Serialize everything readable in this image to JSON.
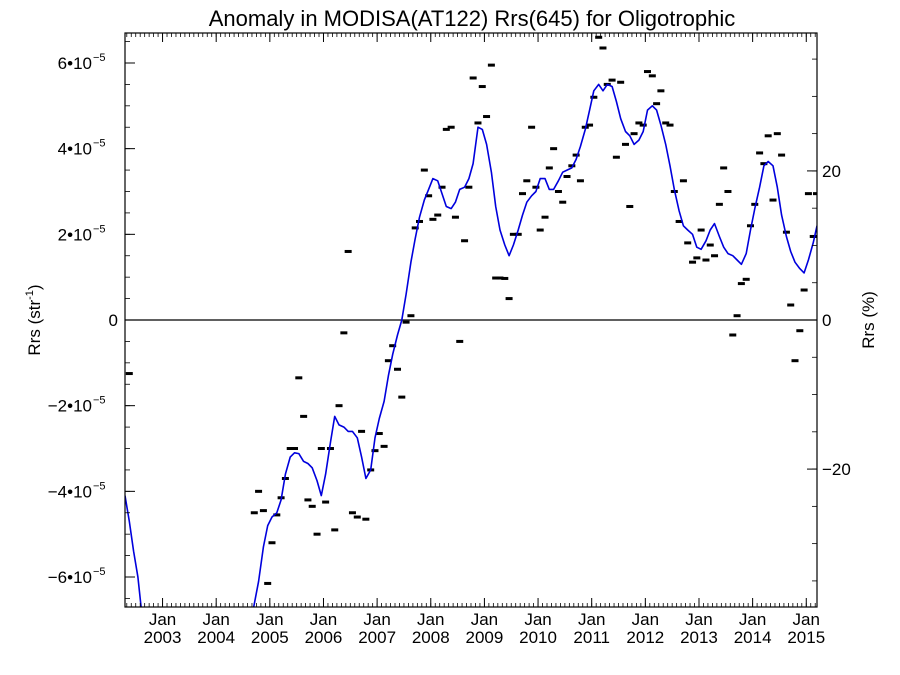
{
  "chart_data": {
    "type": "line",
    "title": "Anomaly in MODISA(AT122) Rrs(645) for Oligotrophic",
    "ylabel": "Rrs (str",
    "ylabel_sup": "-1",
    "ylabel_close": ")",
    "y2label": "Rrs (%)",
    "xlim": [
      2002.3,
      2015.2
    ],
    "ylim": [
      -6.7e-05,
      6.7e-05
    ],
    "y2lim": [
      -38.5,
      38.5
    ],
    "x_ticks": [
      {
        "pos": 2003.0,
        "line1": "Jan",
        "line2": "2003"
      },
      {
        "pos": 2004.0,
        "line1": "Jan",
        "line2": "2004"
      },
      {
        "pos": 2005.0,
        "line1": "Jan",
        "line2": "2005"
      },
      {
        "pos": 2006.0,
        "line1": "Jan",
        "line2": "2006"
      },
      {
        "pos": 2007.0,
        "line1": "Jan",
        "line2": "2007"
      },
      {
        "pos": 2008.0,
        "line1": "Jan",
        "line2": "2008"
      },
      {
        "pos": 2009.0,
        "line1": "Jan",
        "line2": "2009"
      },
      {
        "pos": 2010.0,
        "line1": "Jan",
        "line2": "2010"
      },
      {
        "pos": 2011.0,
        "line1": "Jan",
        "line2": "2011"
      },
      {
        "pos": 2012.0,
        "line1": "Jan",
        "line2": "2012"
      },
      {
        "pos": 2013.0,
        "line1": "Jan",
        "line2": "2013"
      },
      {
        "pos": 2014.0,
        "line1": "Jan",
        "line2": "2014"
      },
      {
        "pos": 2015.0,
        "line1": "Jan",
        "line2": "2015"
      }
    ],
    "y_ticks": [
      {
        "value": 6e-05,
        "mant": "6•10",
        "exp": "−5"
      },
      {
        "value": 4e-05,
        "mant": "4•10",
        "exp": "−5"
      },
      {
        "value": 2e-05,
        "mant": "2•10",
        "exp": "−5"
      },
      {
        "value": 0,
        "mant": "0",
        "exp": ""
      },
      {
        "value": -2e-05,
        "mant": "−2•10",
        "exp": "−5"
      },
      {
        "value": -4e-05,
        "mant": "−4•10",
        "exp": "−5"
      },
      {
        "value": -6e-05,
        "mant": "−6•10",
        "exp": "−5"
      }
    ],
    "y2_ticks": [
      {
        "value": 20,
        "label": "20"
      },
      {
        "value": 0,
        "label": "0"
      },
      {
        "value": -20,
        "label": "−20"
      }
    ],
    "zero_line": true,
    "line_color": "#0000dd",
    "marker_color": "#000000",
    "series": [
      {
        "kind": "monthly_markers",
        "points": [
          [
            2002.38,
            -1.25e-05
          ],
          [
            2004.71,
            -4.5e-05
          ],
          [
            2004.79,
            -4e-05
          ],
          [
            2004.88,
            -4.45e-05
          ],
          [
            2004.96,
            -6.15e-05
          ],
          [
            2005.04,
            -5.2e-05
          ],
          [
            2005.13,
            -4.55e-05
          ],
          [
            2005.21,
            -4.15e-05
          ],
          [
            2005.29,
            -3.7e-05
          ],
          [
            2005.38,
            -3e-05
          ],
          [
            2005.46,
            -3e-05
          ],
          [
            2005.54,
            -1.35e-05
          ],
          [
            2005.63,
            -2.25e-05
          ],
          [
            2005.71,
            -4.2e-05
          ],
          [
            2005.79,
            -4.35e-05
          ],
          [
            2005.88,
            -5e-05
          ],
          [
            2005.96,
            -3e-05
          ],
          [
            2006.04,
            -4.25e-05
          ],
          [
            2006.13,
            -3e-05
          ],
          [
            2006.21,
            -4.9e-05
          ],
          [
            2006.29,
            -2e-05
          ],
          [
            2006.38,
            -3e-06
          ],
          [
            2006.46,
            1.6e-05
          ],
          [
            2006.54,
            -4.5e-05
          ],
          [
            2006.63,
            -4.6e-05
          ],
          [
            2006.71,
            -2.6e-05
          ],
          [
            2006.79,
            -4.65e-05
          ],
          [
            2006.88,
            -3.5e-05
          ],
          [
            2006.96,
            -3.05e-05
          ],
          [
            2007.04,
            -2.65e-05
          ],
          [
            2007.13,
            -2.95e-05
          ],
          [
            2007.21,
            -9.5e-06
          ],
          [
            2007.29,
            -6e-06
          ],
          [
            2007.38,
            -1.15e-05
          ],
          [
            2007.46,
            -1.8e-05
          ],
          [
            2007.54,
            -5e-07
          ],
          [
            2007.63,
            1e-06
          ],
          [
            2007.71,
            2.15e-05
          ],
          [
            2007.79,
            2.3e-05
          ],
          [
            2007.88,
            3.5e-05
          ],
          [
            2007.96,
            2.9e-05
          ],
          [
            2008.04,
            2.35e-05
          ],
          [
            2008.13,
            2.45e-05
          ],
          [
            2008.21,
            3.1e-05
          ],
          [
            2008.29,
            4.45e-05
          ],
          [
            2008.38,
            4.5e-05
          ],
          [
            2008.46,
            2.4e-05
          ],
          [
            2008.54,
            -5e-06
          ],
          [
            2008.63,
            1.85e-05
          ],
          [
            2008.71,
            3.1e-05
          ],
          [
            2008.79,
            5.65e-05
          ],
          [
            2008.88,
            4.6e-05
          ],
          [
            2008.96,
            5.45e-05
          ],
          [
            2009.04,
            4.75e-05
          ],
          [
            2009.13,
            5.95e-05
          ],
          [
            2009.21,
            9.8e-06
          ],
          [
            2009.29,
            9.8e-06
          ],
          [
            2009.38,
            9.7e-06
          ],
          [
            2009.46,
            5e-06
          ],
          [
            2009.54,
            2e-05
          ],
          [
            2009.63,
            2e-05
          ],
          [
            2009.71,
            2.95e-05
          ],
          [
            2009.79,
            3.25e-05
          ],
          [
            2009.88,
            4.5e-05
          ],
          [
            2009.96,
            3.1e-05
          ],
          [
            2010.04,
            2.1e-05
          ],
          [
            2010.13,
            2.4e-05
          ],
          [
            2010.21,
            3.55e-05
          ],
          [
            2010.29,
            4e-05
          ],
          [
            2010.38,
            3e-05
          ],
          [
            2010.46,
            2.75e-05
          ],
          [
            2010.54,
            3.35e-05
          ],
          [
            2010.63,
            3.6e-05
          ],
          [
            2010.71,
            3.85e-05
          ],
          [
            2010.79,
            3.25e-05
          ],
          [
            2010.88,
            4.5e-05
          ],
          [
            2010.96,
            4.55e-05
          ],
          [
            2011.04,
            5.2e-05
          ],
          [
            2011.13,
            6.6e-05
          ],
          [
            2011.21,
            6.35e-05
          ],
          [
            2011.29,
            5.5e-05
          ],
          [
            2011.38,
            5.6e-05
          ],
          [
            2011.46,
            3.8e-05
          ],
          [
            2011.54,
            5.55e-05
          ],
          [
            2011.63,
            4.1e-05
          ],
          [
            2011.71,
            2.65e-05
          ],
          [
            2011.79,
            4.35e-05
          ],
          [
            2011.88,
            4.6e-05
          ],
          [
            2011.96,
            4.55e-05
          ],
          [
            2012.04,
            5.8e-05
          ],
          [
            2012.13,
            5.7e-05
          ],
          [
            2012.21,
            5.05e-05
          ],
          [
            2012.29,
            5.35e-05
          ],
          [
            2012.38,
            4.6e-05
          ],
          [
            2012.46,
            4.55e-05
          ],
          [
            2012.54,
            3e-05
          ],
          [
            2012.63,
            2.3e-05
          ],
          [
            2012.71,
            3.25e-05
          ],
          [
            2012.79,
            1.8e-05
          ],
          [
            2012.88,
            1.35e-05
          ],
          [
            2012.96,
            1.45e-05
          ],
          [
            2013.04,
            2.1e-05
          ],
          [
            2013.13,
            1.4e-05
          ],
          [
            2013.21,
            1.75e-05
          ],
          [
            2013.29,
            1.5e-05
          ],
          [
            2013.38,
            2.7e-05
          ],
          [
            2013.46,
            3.55e-05
          ],
          [
            2013.54,
            3e-05
          ],
          [
            2013.63,
            -3.5e-06
          ],
          [
            2013.71,
            1e-06
          ],
          [
            2013.79,
            8.5e-06
          ],
          [
            2013.88,
            9.5e-06
          ],
          [
            2013.96,
            2.2e-05
          ],
          [
            2014.04,
            2.7e-05
          ],
          [
            2014.13,
            3.9e-05
          ],
          [
            2014.21,
            3.65e-05
          ],
          [
            2014.29,
            4.3e-05
          ],
          [
            2014.38,
            2.8e-05
          ],
          [
            2014.46,
            4.35e-05
          ],
          [
            2014.54,
            3.85e-05
          ],
          [
            2014.63,
            2.05e-05
          ],
          [
            2014.71,
            3.5e-06
          ],
          [
            2014.79,
            -9.5e-06
          ],
          [
            2014.88,
            -2.5e-06
          ],
          [
            2014.96,
            7e-06
          ],
          [
            2015.04,
            2.95e-05
          ],
          [
            2015.13,
            1.95e-05
          ],
          [
            2015.19,
            2.95e-05
          ]
        ]
      },
      {
        "kind": "smoothed_line",
        "points": [
          [
            2002.3,
            -4.1e-05
          ],
          [
            2002.38,
            -4.7e-05
          ],
          [
            2002.46,
            -5.4e-05
          ],
          [
            2002.54,
            -6e-05
          ],
          [
            2002.6,
            -6.7e-05
          ],
          [
            2004.7,
            -6.7e-05
          ],
          [
            2004.79,
            -6.1e-05
          ],
          [
            2004.88,
            -5.3e-05
          ],
          [
            2004.96,
            -4.8e-05
          ],
          [
            2005.04,
            -4.6e-05
          ],
          [
            2005.13,
            -4.5e-05
          ],
          [
            2005.21,
            -4.2e-05
          ],
          [
            2005.29,
            -3.6e-05
          ],
          [
            2005.38,
            -3.2e-05
          ],
          [
            2005.46,
            -3.1e-05
          ],
          [
            2005.54,
            -3.12e-05
          ],
          [
            2005.63,
            -3.3e-05
          ],
          [
            2005.71,
            -3.35e-05
          ],
          [
            2005.79,
            -3.45e-05
          ],
          [
            2005.88,
            -3.75e-05
          ],
          [
            2005.96,
            -4.1e-05
          ],
          [
            2006.04,
            -3.6e-05
          ],
          [
            2006.13,
            -2.85e-05
          ],
          [
            2006.21,
            -2.25e-05
          ],
          [
            2006.29,
            -2.45e-05
          ],
          [
            2006.38,
            -2.5e-05
          ],
          [
            2006.46,
            -2.6e-05
          ],
          [
            2006.54,
            -2.6e-05
          ],
          [
            2006.63,
            -2.75e-05
          ],
          [
            2006.71,
            -3.2e-05
          ],
          [
            2006.79,
            -3.7e-05
          ],
          [
            2006.88,
            -3.5e-05
          ],
          [
            2006.96,
            -2.75e-05
          ],
          [
            2007.04,
            -2.3e-05
          ],
          [
            2007.13,
            -1.9e-05
          ],
          [
            2007.21,
            -1.3e-05
          ],
          [
            2007.29,
            -8e-06
          ],
          [
            2007.38,
            -3.5e-06
          ],
          [
            2007.46,
            0.0
          ],
          [
            2007.54,
            6e-06
          ],
          [
            2007.63,
            1.35e-05
          ],
          [
            2007.71,
            1.9e-05
          ],
          [
            2007.79,
            2.4e-05
          ],
          [
            2007.88,
            2.8e-05
          ],
          [
            2007.96,
            3.05e-05
          ],
          [
            2008.04,
            3.3e-05
          ],
          [
            2008.13,
            3.25e-05
          ],
          [
            2008.21,
            2.95e-05
          ],
          [
            2008.29,
            2.65e-05
          ],
          [
            2008.38,
            2.6e-05
          ],
          [
            2008.46,
            2.75e-05
          ],
          [
            2008.54,
            3.05e-05
          ],
          [
            2008.63,
            3.1e-05
          ],
          [
            2008.71,
            3.3e-05
          ],
          [
            2008.79,
            3.65e-05
          ],
          [
            2008.88,
            4.5e-05
          ],
          [
            2008.96,
            4.45e-05
          ],
          [
            2009.04,
            4.1e-05
          ],
          [
            2009.13,
            3.45e-05
          ],
          [
            2009.21,
            2.65e-05
          ],
          [
            2009.29,
            2.1e-05
          ],
          [
            2009.38,
            1.75e-05
          ],
          [
            2009.46,
            1.5e-05
          ],
          [
            2009.54,
            1.75e-05
          ],
          [
            2009.63,
            2.1e-05
          ],
          [
            2009.71,
            2.45e-05
          ],
          [
            2009.79,
            2.75e-05
          ],
          [
            2009.88,
            2.9e-05
          ],
          [
            2009.96,
            3e-05
          ],
          [
            2010.04,
            3.3e-05
          ],
          [
            2010.13,
            3.3e-05
          ],
          [
            2010.21,
            3.05e-05
          ],
          [
            2010.29,
            3.05e-05
          ],
          [
            2010.38,
            3.25e-05
          ],
          [
            2010.46,
            3.45e-05
          ],
          [
            2010.54,
            3.5e-05
          ],
          [
            2010.63,
            3.55e-05
          ],
          [
            2010.71,
            3.75e-05
          ],
          [
            2010.79,
            4.05e-05
          ],
          [
            2010.88,
            4.45e-05
          ],
          [
            2010.96,
            4.9e-05
          ],
          [
            2011.04,
            5.35e-05
          ],
          [
            2011.13,
            5.5e-05
          ],
          [
            2011.21,
            5.35e-05
          ],
          [
            2011.29,
            5.5e-05
          ],
          [
            2011.38,
            5.45e-05
          ],
          [
            2011.46,
            5.1e-05
          ],
          [
            2011.54,
            4.7e-05
          ],
          [
            2011.63,
            4.4e-05
          ],
          [
            2011.71,
            4.3e-05
          ],
          [
            2011.79,
            4.1e-05
          ],
          [
            2011.88,
            4.2e-05
          ],
          [
            2011.96,
            4.4e-05
          ],
          [
            2012.04,
            4.9e-05
          ],
          [
            2012.13,
            5e-05
          ],
          [
            2012.21,
            4.9e-05
          ],
          [
            2012.29,
            4.55e-05
          ],
          [
            2012.38,
            4.1e-05
          ],
          [
            2012.46,
            3.6e-05
          ],
          [
            2012.54,
            3.05e-05
          ],
          [
            2012.63,
            2.55e-05
          ],
          [
            2012.71,
            2.2e-05
          ],
          [
            2012.79,
            2.1e-05
          ],
          [
            2012.88,
            2e-05
          ],
          [
            2012.96,
            1.7e-05
          ],
          [
            2013.04,
            1.65e-05
          ],
          [
            2013.13,
            1.85e-05
          ],
          [
            2013.21,
            2.1e-05
          ],
          [
            2013.29,
            2.25e-05
          ],
          [
            2013.38,
            1.95e-05
          ],
          [
            2013.46,
            1.7e-05
          ],
          [
            2013.54,
            1.55e-05
          ],
          [
            2013.63,
            1.5e-05
          ],
          [
            2013.71,
            1.4e-05
          ],
          [
            2013.79,
            1.3e-05
          ],
          [
            2013.88,
            1.55e-05
          ],
          [
            2013.96,
            2.1e-05
          ],
          [
            2014.04,
            2.6e-05
          ],
          [
            2014.13,
            3.1e-05
          ],
          [
            2014.21,
            3.6e-05
          ],
          [
            2014.29,
            3.7e-05
          ],
          [
            2014.38,
            3.6e-05
          ],
          [
            2014.46,
            3.1e-05
          ],
          [
            2014.54,
            2.45e-05
          ],
          [
            2014.63,
            1.95e-05
          ],
          [
            2014.71,
            1.6e-05
          ],
          [
            2014.79,
            1.35e-05
          ],
          [
            2014.88,
            1.2e-05
          ],
          [
            2014.96,
            1.1e-05
          ],
          [
            2015.04,
            1.4e-05
          ],
          [
            2015.13,
            1.8e-05
          ],
          [
            2015.2,
            2.2e-05
          ]
        ]
      }
    ]
  }
}
